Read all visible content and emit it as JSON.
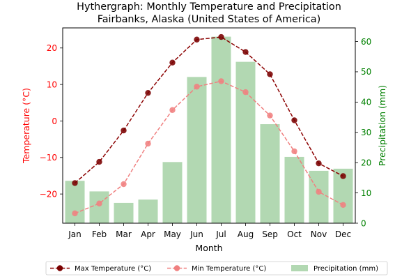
{
  "chart_data": {
    "type": "line+bar",
    "title_line1": "Hythergraph: Monthly Temperature and Precipitation",
    "title_line2": "Fairbanks, Alaska (United States of America)",
    "xlabel": "Month",
    "ylabel_left": "Temperature (°C)",
    "ylabel_right": "Precipitation (mm)",
    "categories": [
      "Jan",
      "Feb",
      "Mar",
      "Apr",
      "May",
      "Jun",
      "Jul",
      "Aug",
      "Sep",
      "Oct",
      "Nov",
      "Dec"
    ],
    "ylim_left": [
      -28,
      25.5
    ],
    "yticks_left": [
      -20,
      -10,
      0,
      10,
      20
    ],
    "ytick_labels_left": [
      "−20",
      "−10",
      "0",
      "10",
      "20"
    ],
    "ylim_right": [
      0,
      64.5
    ],
    "yticks_right": [
      0,
      10,
      20,
      30,
      40,
      50,
      60
    ],
    "ytick_labels_right": [
      "0",
      "10",
      "20",
      "30",
      "40",
      "50",
      "60"
    ],
    "grid": false,
    "legend_placement": "bottom-center",
    "series": [
      {
        "name": "Max Temperature (°C)",
        "kind": "line",
        "axis": "left",
        "color": "#8b0000",
        "values": [
          -17.0,
          -11.2,
          -2.6,
          7.7,
          16.0,
          22.3,
          23.0,
          18.9,
          12.8,
          0.2,
          -11.6,
          -15.1
        ]
      },
      {
        "name": "Min Temperature (°C)",
        "kind": "line",
        "axis": "left",
        "color": "#f08080",
        "values": [
          -25.3,
          -22.6,
          -17.3,
          -6.2,
          3.0,
          9.4,
          10.9,
          7.9,
          1.5,
          -8.3,
          -19.4,
          -23.0
        ]
      },
      {
        "name": "Precipitation (mm)",
        "kind": "bar",
        "axis": "right",
        "color": "#b2d8b2",
        "values": [
          14.0,
          10.5,
          6.7,
          7.8,
          20.2,
          48.3,
          61.6,
          53.3,
          32.7,
          21.9,
          17.3,
          18.0
        ]
      }
    ],
    "colors": {
      "left_axis": "#ff0000",
      "right_axis": "#008000",
      "max_marker_face": "#7a0000"
    }
  }
}
